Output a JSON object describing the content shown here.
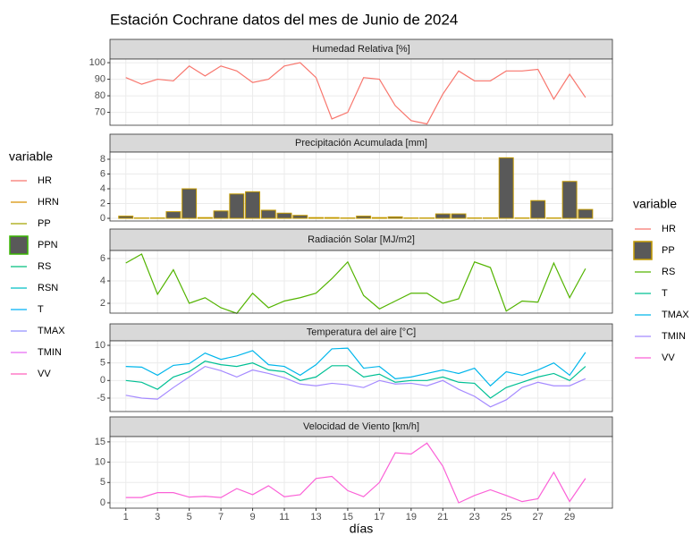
{
  "title": "Estación Cochrane datos del mes de Junio de 2024",
  "xlabel": "días",
  "xlim": [
    0,
    31.7
  ],
  "xticks": [
    1,
    3,
    5,
    7,
    9,
    11,
    13,
    15,
    17,
    19,
    21,
    23,
    25,
    27,
    29
  ],
  "legends": [
    {
      "title": "variable",
      "items": [
        {
          "name": "HR",
          "color": "#F8766D"
        },
        {
          "name": "HRN",
          "color": "#D89000"
        },
        {
          "name": "PP",
          "color": "#A3A500"
        },
        {
          "name": "PPN",
          "color": "#39B600",
          "fill": "#595959"
        },
        {
          "name": "RS",
          "color": "#00BF7D"
        },
        {
          "name": "RSN",
          "color": "#00BFC4"
        },
        {
          "name": "T",
          "color": "#00B0F6"
        },
        {
          "name": "TMAX",
          "color": "#9590FF"
        },
        {
          "name": "TMIN",
          "color": "#E76BF3"
        },
        {
          "name": "VV",
          "color": "#FF62BC"
        }
      ]
    },
    {
      "title": "variable",
      "items": [
        {
          "name": "HR",
          "color": "#F8766D"
        },
        {
          "name": "PP",
          "color": "#C49A00",
          "fill": "#595959"
        },
        {
          "name": "RS",
          "color": "#53B400"
        },
        {
          "name": "T",
          "color": "#00C094"
        },
        {
          "name": "TMAX",
          "color": "#00B6EB"
        },
        {
          "name": "TMIN",
          "color": "#A58AFF"
        },
        {
          "name": "VV",
          "color": "#FB61D7"
        }
      ]
    }
  ],
  "chart_data": [
    {
      "type": "line",
      "title": "Humedad Relativa [%]",
      "x": [
        1,
        2,
        3,
        4,
        5,
        6,
        7,
        8,
        9,
        10,
        11,
        12,
        13,
        14,
        15,
        16,
        17,
        18,
        19,
        20,
        21,
        22,
        23,
        24,
        25,
        26,
        27,
        28,
        29,
        30
      ],
      "series": [
        {
          "name": "HR",
          "color": "#F8766D",
          "values": [
            91,
            87,
            90,
            89,
            98,
            92,
            98,
            95,
            88,
            90,
            98,
            100,
            91,
            66,
            70,
            91,
            90,
            74,
            65,
            63,
            81,
            95,
            89,
            89,
            95,
            95,
            96,
            78,
            93,
            79
          ]
        }
      ],
      "ylim": [
        62.2,
        102.2
      ],
      "yticks": [
        70,
        80,
        90,
        100
      ],
      "grid": true
    },
    {
      "type": "bar",
      "title": "Precipitación Acumulada [mm]",
      "x": [
        1,
        2,
        3,
        4,
        5,
        6,
        7,
        8,
        9,
        10,
        11,
        12,
        13,
        14,
        15,
        16,
        17,
        18,
        19,
        20,
        21,
        22,
        23,
        24,
        25,
        26,
        27,
        28,
        29,
        30
      ],
      "series": [
        {
          "name": "PP",
          "color": "#C49A00",
          "fill": "#595959",
          "values": [
            0.3,
            0.05,
            0.05,
            0.9,
            4.0,
            0.1,
            1.0,
            3.3,
            3.6,
            1.1,
            0.7,
            0.4,
            0.1,
            0.1,
            0.05,
            0.3,
            0.1,
            0.2,
            0.05,
            0.05,
            0.6,
            0.6,
            0.05,
            0.05,
            8.2,
            0.05,
            2.4,
            0.05,
            5.0,
            1.2
          ]
        }
      ],
      "ylim": [
        -0.36,
        8.97
      ],
      "yticks": [
        0,
        2,
        4,
        6,
        8
      ],
      "grid": true
    },
    {
      "type": "line",
      "title": "Radiación Solar [MJ/m2]",
      "x": [
        1,
        2,
        3,
        4,
        5,
        6,
        7,
        8,
        9,
        10,
        11,
        12,
        13,
        14,
        15,
        16,
        17,
        18,
        19,
        20,
        21,
        22,
        23,
        24,
        25,
        26,
        27,
        28,
        29,
        30
      ],
      "series": [
        {
          "name": "RS",
          "color": "#53B400",
          "values": [
            5.6,
            6.4,
            2.8,
            5.0,
            2.0,
            2.5,
            1.6,
            1.1,
            2.9,
            1.6,
            2.2,
            2.5,
            2.9,
            4.2,
            5.7,
            2.7,
            1.5,
            2.2,
            2.9,
            2.9,
            2.0,
            2.4,
            5.7,
            5.2,
            1.3,
            2.2,
            2.1,
            5.6,
            2.5,
            5.1
          ]
        }
      ],
      "ylim": [
        1.12,
        6.72
      ],
      "yticks": [
        2,
        4,
        6
      ],
      "grid": true
    },
    {
      "type": "line",
      "title": "Temperatura del aire [°C]",
      "x": [
        1,
        2,
        3,
        4,
        5,
        6,
        7,
        8,
        9,
        10,
        11,
        12,
        13,
        14,
        15,
        16,
        17,
        18,
        19,
        20,
        21,
        22,
        23,
        24,
        25,
        26,
        27,
        28,
        29,
        30
      ],
      "series": [
        {
          "name": "T",
          "color": "#00C094",
          "values": [
            0,
            -0.5,
            -2.5,
            1,
            2.5,
            5.5,
            4.5,
            4,
            5,
            3,
            2.5,
            0,
            1,
            4.2,
            4.2,
            1,
            1.8,
            -0.5,
            0,
            0,
            1,
            -0.5,
            -0.8,
            -5,
            -2,
            -0.5,
            1,
            2,
            0,
            4
          ]
        },
        {
          "name": "TMAX",
          "color": "#00B6EB",
          "values": [
            4,
            3.8,
            1.5,
            4.3,
            4.8,
            7.8,
            6,
            7,
            8.5,
            4.5,
            4,
            1.5,
            4.5,
            9,
            9.2,
            3.5,
            4,
            0.5,
            1,
            2,
            3,
            2,
            3.5,
            -1.5,
            2.5,
            1.5,
            3,
            5,
            1.5,
            8
          ]
        },
        {
          "name": "TMIN",
          "color": "#A58AFF",
          "values": [
            -4.2,
            -5,
            -5.3,
            -2,
            1,
            4,
            2.8,
            1,
            3,
            2,
            0.8,
            -1,
            -1.5,
            -0.8,
            -1.2,
            -2,
            0,
            -1,
            -0.8,
            -1.5,
            0,
            -2.5,
            -4.5,
            -7.5,
            -5.5,
            -2,
            -0.5,
            -1.5,
            -1.5,
            0.5
          ]
        }
      ],
      "ylim": [
        -8.82,
        11.27
      ],
      "yticks": [
        -5,
        0,
        5,
        10
      ],
      "grid": true
    },
    {
      "type": "line",
      "title": "Velocidad de Viento [km/h]",
      "x": [
        1,
        2,
        3,
        4,
        5,
        6,
        7,
        8,
        9,
        10,
        11,
        12,
        13,
        14,
        15,
        16,
        17,
        18,
        19,
        20,
        21,
        22,
        23,
        24,
        25,
        26,
        27,
        28,
        29,
        30
      ],
      "series": [
        {
          "name": "VV",
          "color": "#FB61D7",
          "values": [
            1.3,
            1.3,
            2.5,
            2.5,
            1.4,
            1.6,
            1.3,
            3.5,
            2,
            4.2,
            1.5,
            2,
            6,
            6.5,
            3,
            1.5,
            5,
            12.3,
            12,
            14.7,
            9,
            0,
            1.8,
            3.2,
            1.8,
            0.3,
            1,
            7.5,
            0.3,
            6
          ]
        }
      ],
      "ylim": [
        -1.32,
        16.3
      ],
      "yticks": [
        0,
        5,
        10,
        15
      ],
      "grid": true
    }
  ]
}
